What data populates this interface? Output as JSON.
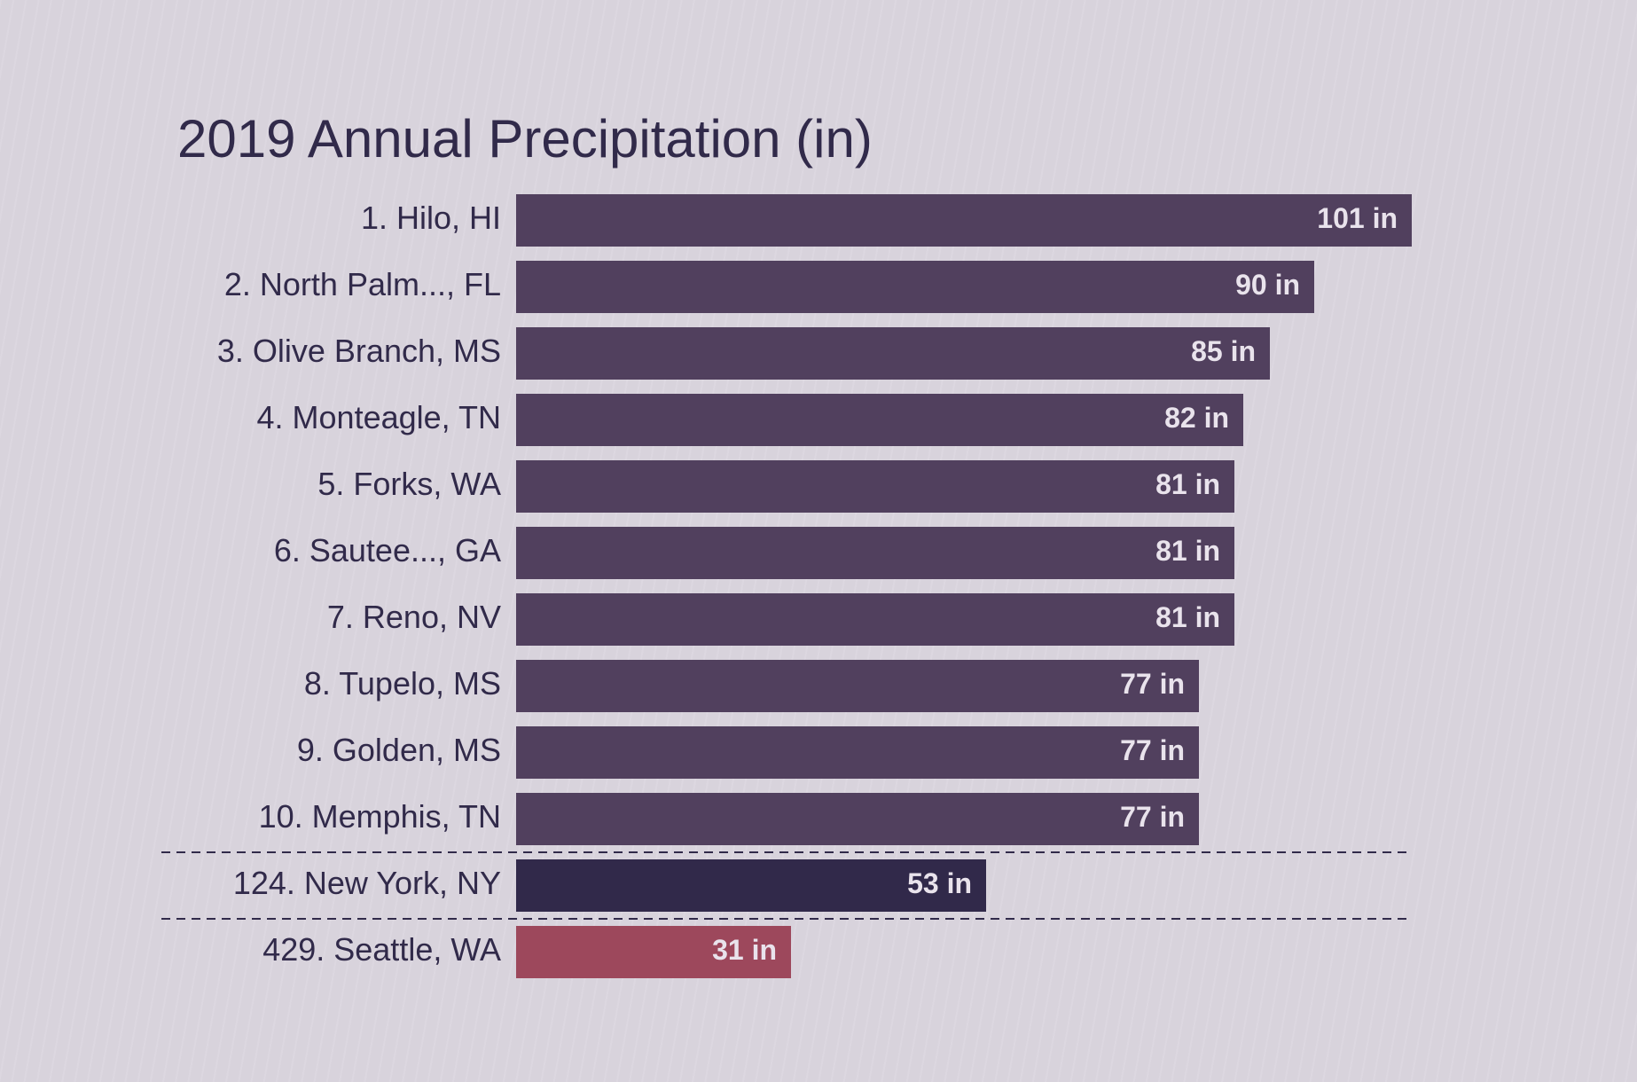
{
  "chart_data": {
    "type": "bar",
    "orientation": "horizontal",
    "title": "2019 Annual Precipitation (in)",
    "xlabel": "",
    "ylabel": "",
    "xlim": [
      0,
      101
    ],
    "grid": false,
    "legend": "none",
    "unit_suffix": " in",
    "categories": [
      "1. Hilo, HI",
      "2. North Palm..., FL",
      "3. Olive Branch, MS",
      "4. Monteagle, TN",
      "5. Forks, WA",
      "6. Sautee..., GA",
      "7. Reno, NV",
      "8. Tupelo, MS",
      "9. Golden, MS",
      "10. Memphis, TN",
      "124. New York, NY",
      "429. Seattle, WA"
    ],
    "values": [
      101,
      90,
      85,
      82,
      81,
      81,
      81,
      77,
      77,
      77,
      53,
      31
    ],
    "bar_colors": [
      "#51405e",
      "#51405e",
      "#51405e",
      "#51405e",
      "#51405e",
      "#51405e",
      "#51405e",
      "#51405e",
      "#51405e",
      "#51405e",
      "#31294a",
      "#9d485c"
    ],
    "separators_after_rank": [
      10,
      11
    ]
  },
  "colors": {
    "background": "#d8d3dc",
    "title_text": "#312a4a",
    "label_text": "#312a4a",
    "value_text": "#e9e3ec",
    "separator": "#312a4a"
  }
}
